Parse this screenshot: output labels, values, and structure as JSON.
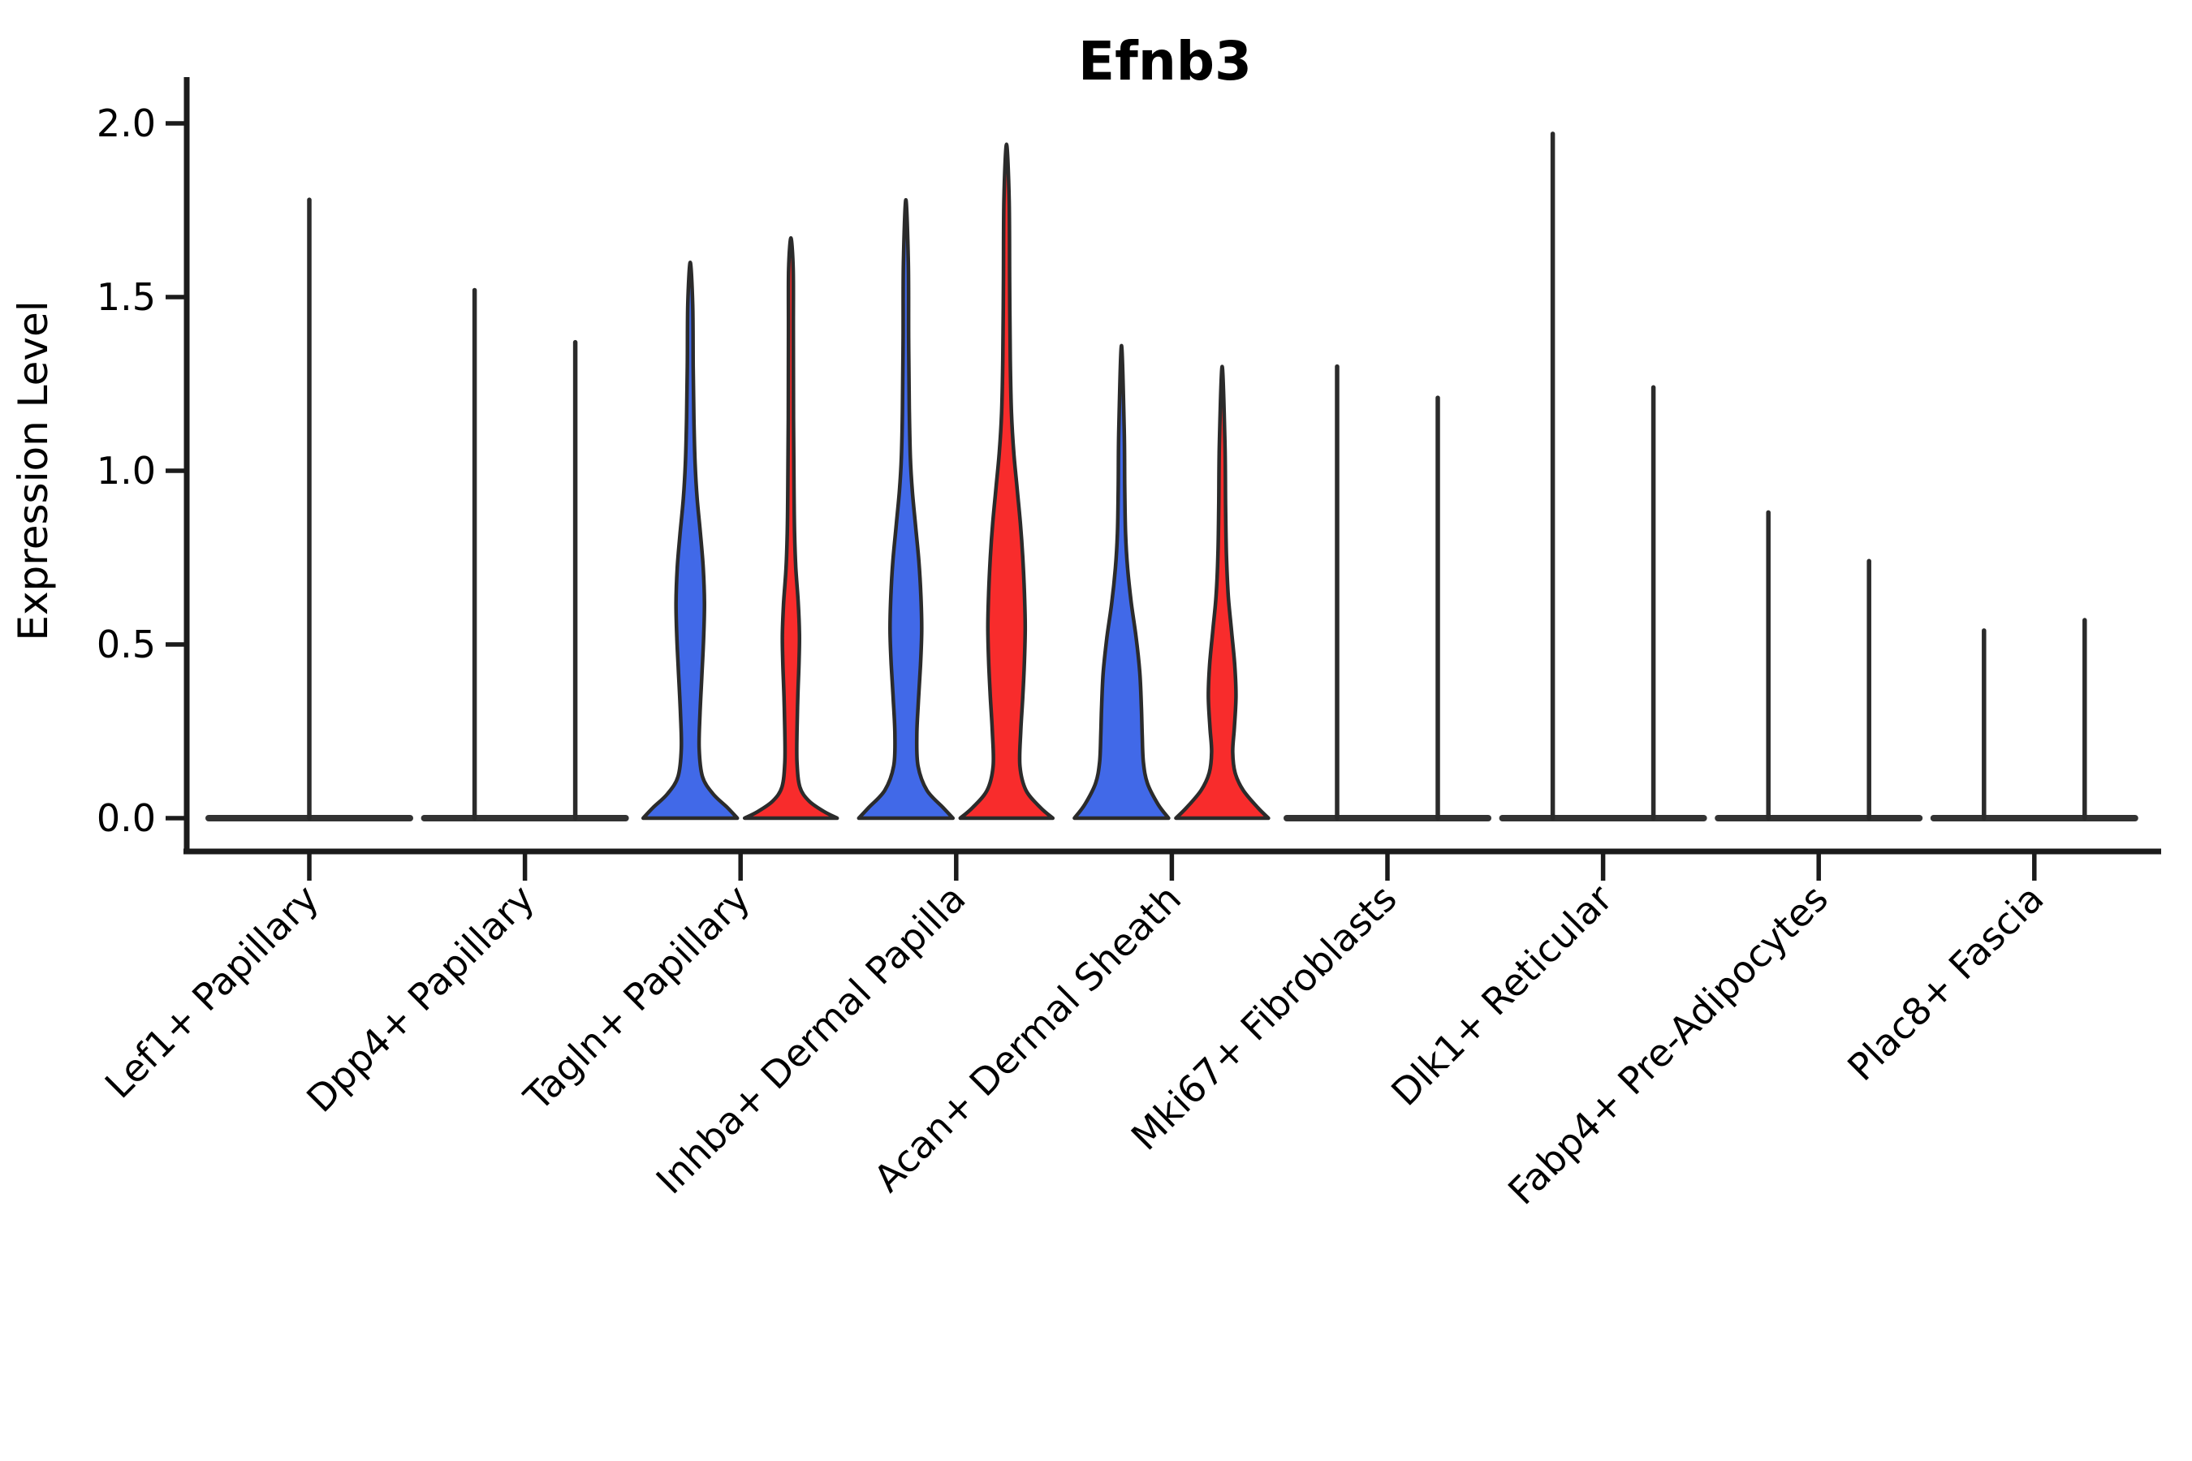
{
  "title": "Efnb3",
  "y_axis": {
    "label": "Expression Level",
    "ticks": [
      "0.0",
      "0.5",
      "1.0",
      "1.5",
      "2.0"
    ],
    "tick_values": [
      0.0,
      0.5,
      1.0,
      1.5,
      2.0
    ]
  },
  "colors": {
    "group_blue": "#4169E8",
    "group_red": "#F82C2C",
    "outline": "#2b2b2b",
    "axis": "#1b1b1b",
    "baseline": "#333333"
  },
  "chart_data": {
    "type": "violin",
    "title": "Efnb3",
    "ylabel": "Expression Level",
    "ylim": [
      0,
      2.05
    ],
    "grid": false,
    "legend": "none",
    "categories": [
      "Lef1+ Papillary",
      "Dpp4+ Papillary",
      "Tagln+ Papillary",
      "Inhba+ Dermal Papilla",
      "Acan+ Dermal Sheath",
      "Mki67+ Fibroblasts",
      "Dlk1+ Reticular",
      "Fabp4+ Pre-Adipocytes",
      "Plac8+ Fascia"
    ],
    "series": [
      {
        "name": "group-blue",
        "color": "#4169E8",
        "max_expression": [
          1.78,
          1.52,
          1.6,
          1.78,
          1.36,
          1.3,
          1.97,
          0.88,
          0.54
        ]
      },
      {
        "name": "group-red",
        "color": "#F82C2C",
        "max_expression": [
          null,
          1.37,
          1.67,
          1.94,
          1.3,
          1.21,
          1.24,
          0.74,
          0.57
        ]
      }
    ],
    "note": "Lef1+ Papillary shows a single full-width collapsed violin; most mass of every violin sits at expression 0 (flat base line), thin tails reach the max values; only Tagln+/Inhba+/Acan+ categories have visible filled bodies.",
    "violins": [
      {
        "category": "Lef1+ Papillary",
        "group": "single",
        "offset": 0,
        "max": 1.78,
        "profile": null,
        "full_width": true
      },
      {
        "category": "Dpp4+ Papillary",
        "group": "blue",
        "offset": -62,
        "max": 1.52,
        "profile": null
      },
      {
        "category": "Dpp4+ Papillary",
        "group": "red",
        "offset": 62,
        "max": 1.37,
        "profile": null
      },
      {
        "category": "Tagln+ Papillary",
        "group": "blue",
        "offset": -62,
        "max": 1.6,
        "profile": [
          [
            0,
            58
          ],
          [
            0.03,
            46
          ],
          [
            0.07,
            28
          ],
          [
            0.12,
            15
          ],
          [
            0.2,
            11
          ],
          [
            0.3,
            12
          ],
          [
            0.42,
            14.5
          ],
          [
            0.52,
            16.5
          ],
          [
            0.62,
            17.5
          ],
          [
            0.72,
            16
          ],
          [
            0.82,
            12.5
          ],
          [
            0.92,
            8.5
          ],
          [
            1.02,
            6
          ],
          [
            1.15,
            4.5
          ],
          [
            1.3,
            3.6
          ],
          [
            1.48,
            3
          ],
          [
            1.6,
            0
          ]
        ]
      },
      {
        "category": "Tagln+ Papillary",
        "group": "red",
        "offset": 62,
        "max": 1.67,
        "profile": [
          [
            0,
            57
          ],
          [
            0.02,
            40
          ],
          [
            0.05,
            22
          ],
          [
            0.09,
            11
          ],
          [
            0.16,
            7.5
          ],
          [
            0.25,
            7.5
          ],
          [
            0.35,
            8.5
          ],
          [
            0.45,
            10
          ],
          [
            0.53,
            10.5
          ],
          [
            0.62,
            9
          ],
          [
            0.72,
            6
          ],
          [
            0.82,
            4.5
          ],
          [
            0.95,
            3.8
          ],
          [
            1.15,
            3.2
          ],
          [
            1.4,
            3
          ],
          [
            1.58,
            2.8
          ],
          [
            1.67,
            0
          ]
        ]
      },
      {
        "category": "Inhba+ Dermal Papilla",
        "group": "blue",
        "offset": -62,
        "max": 1.78,
        "profile": [
          [
            0,
            58
          ],
          [
            0.03,
            46
          ],
          [
            0.08,
            26
          ],
          [
            0.15,
            15
          ],
          [
            0.24,
            13.5
          ],
          [
            0.34,
            15.5
          ],
          [
            0.44,
            18
          ],
          [
            0.54,
            19.5
          ],
          [
            0.64,
            18.5
          ],
          [
            0.74,
            16
          ],
          [
            0.84,
            12
          ],
          [
            0.94,
            8
          ],
          [
            1.04,
            5.5
          ],
          [
            1.18,
            4.2
          ],
          [
            1.38,
            3.4
          ],
          [
            1.6,
            3
          ],
          [
            1.78,
            0
          ]
        ]
      },
      {
        "category": "Inhba+ Dermal Papilla",
        "group": "red",
        "offset": 62,
        "max": 1.94,
        "profile": [
          [
            0,
            57
          ],
          [
            0.03,
            42
          ],
          [
            0.08,
            24
          ],
          [
            0.15,
            16.5
          ],
          [
            0.25,
            17.5
          ],
          [
            0.35,
            20
          ],
          [
            0.45,
            22
          ],
          [
            0.55,
            23
          ],
          [
            0.65,
            22
          ],
          [
            0.75,
            20
          ],
          [
            0.85,
            17
          ],
          [
            0.95,
            13
          ],
          [
            1.05,
            9
          ],
          [
            1.17,
            6
          ],
          [
            1.32,
            4.6
          ],
          [
            1.55,
            3.8
          ],
          [
            1.78,
            3.2
          ],
          [
            1.94,
            0
          ]
        ]
      },
      {
        "category": "Acan+ Dermal Sheath",
        "group": "blue",
        "offset": -62,
        "max": 1.36,
        "profile": [
          [
            0,
            58
          ],
          [
            0.04,
            45
          ],
          [
            0.1,
            32
          ],
          [
            0.16,
            27
          ],
          [
            0.24,
            25.5
          ],
          [
            0.32,
            24.5
          ],
          [
            0.42,
            22.5
          ],
          [
            0.52,
            18
          ],
          [
            0.62,
            12
          ],
          [
            0.72,
            7.5
          ],
          [
            0.82,
            5
          ],
          [
            0.95,
            4
          ],
          [
            1.12,
            3.3
          ],
          [
            1.36,
            0
          ]
        ]
      },
      {
        "category": "Acan+ Dermal Sheath",
        "group": "red",
        "offset": 62,
        "max": 1.3,
        "profile": [
          [
            0,
            57
          ],
          [
            0.03,
            44
          ],
          [
            0.08,
            26
          ],
          [
            0.13,
            16
          ],
          [
            0.19,
            13
          ],
          [
            0.26,
            15
          ],
          [
            0.35,
            17
          ],
          [
            0.44,
            15.5
          ],
          [
            0.54,
            11.5
          ],
          [
            0.64,
            7.5
          ],
          [
            0.76,
            5.2
          ],
          [
            0.9,
            4.2
          ],
          [
            1.08,
            3.4
          ],
          [
            1.3,
            0
          ]
        ]
      },
      {
        "category": "Mki67+ Fibroblasts",
        "group": "blue",
        "offset": -62,
        "max": 1.3,
        "profile": null
      },
      {
        "category": "Mki67+ Fibroblasts",
        "group": "red",
        "offset": 62,
        "max": 1.21,
        "profile": null
      },
      {
        "category": "Dlk1+ Reticular",
        "group": "blue",
        "offset": -62,
        "max": 1.97,
        "profile": null
      },
      {
        "category": "Dlk1+ Reticular",
        "group": "red",
        "offset": 62,
        "max": 1.24,
        "profile": null
      },
      {
        "category": "Fabp4+ Pre-Adipocytes",
        "group": "blue",
        "offset": -62,
        "max": 0.88,
        "profile": null
      },
      {
        "category": "Fabp4+ Pre-Adipocytes",
        "group": "red",
        "offset": 62,
        "max": 0.74,
        "profile": null
      },
      {
        "category": "Plac8+ Fascia",
        "group": "blue",
        "offset": -62,
        "max": 0.54,
        "profile": null
      },
      {
        "category": "Plac8+ Fascia",
        "group": "red",
        "offset": 62,
        "max": 0.57,
        "profile": null
      }
    ]
  }
}
